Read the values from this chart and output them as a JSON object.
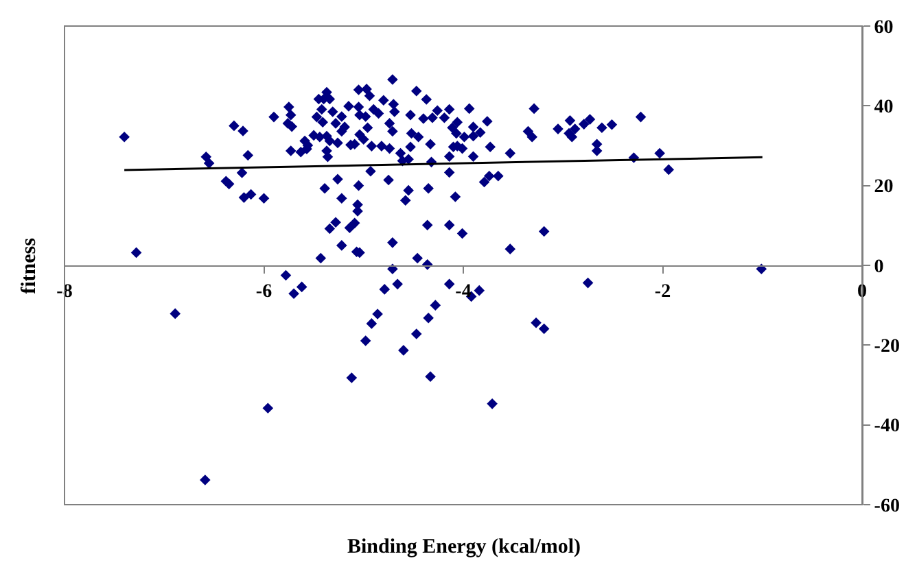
{
  "chart_data": {
    "type": "scatter",
    "xlabel": "Binding Energy (kcal/mol)",
    "ylabel": "fitness",
    "xlim": [
      -8,
      0
    ],
    "ylim": [
      -60,
      60
    ],
    "xticks": [
      -8,
      -6,
      -4,
      -2,
      0
    ],
    "yticks": [
      -60,
      -40,
      -20,
      0,
      20,
      40,
      60
    ],
    "grid": false,
    "marker": "diamond",
    "series": [
      {
        "color": "#000080",
        "x": [
          -7.4,
          -7.28,
          -6.55,
          -6.58,
          -6.3,
          -6.21,
          -6.16,
          -6.22,
          -6.38,
          -6.35,
          -6.2,
          -6.13,
          -6.0,
          -5.9,
          -5.75,
          -5.73,
          -5.76,
          -5.72,
          -5.73,
          -5.63,
          -5.59,
          -5.56,
          -5.57,
          -5.5,
          -5.45,
          -5.4,
          -5.34,
          -5.37,
          -5.42,
          -5.47,
          -5.41,
          -5.44,
          -5.37,
          -5.34,
          -5.37,
          -5.36,
          -5.31,
          -5.28,
          -5.22,
          -5.22,
          -5.26,
          -5.19,
          -5.15,
          -5.05,
          -4.97,
          -4.94,
          -5.05,
          -5.04,
          -4.98,
          -4.96,
          -5.13,
          -5.09,
          -5.0,
          -5.04,
          -4.92,
          -4.9,
          -4.85,
          -4.8,
          -4.71,
          -4.7,
          -4.69,
          -4.74,
          -4.71,
          -4.82,
          -4.74,
          -4.63,
          -4.47,
          -4.37,
          -4.53,
          -4.4,
          -4.31,
          -4.26,
          -4.52,
          -4.45,
          -4.53,
          -4.33,
          -4.61,
          -4.55,
          -4.32,
          -4.93,
          -5.26,
          -5.39,
          -5.22,
          -5.05,
          -5.06,
          -5.06,
          -5.28,
          -5.34,
          -5.14,
          -5.09,
          -5.22,
          -5.07,
          -5.04,
          -5.43,
          -4.71,
          -4.75,
          -4.55,
          -4.58,
          -4.35,
          -4.36,
          -4.46,
          -4.36,
          -4.19,
          -4.14,
          -4.11,
          -4.06,
          -4.07,
          -4.1,
          -4.06,
          -4.14,
          -3.99,
          -4.01,
          -3.94,
          -3.9,
          -3.9,
          -3.83,
          -3.76,
          -3.73,
          -3.9,
          -3.79,
          -3.74,
          -3.65,
          -3.53,
          -3.35,
          -3.31,
          -3.29,
          -3.05,
          -2.94,
          -2.91,
          -2.93,
          -2.88,
          -2.79,
          -2.73,
          -2.61,
          -2.51,
          -2.66,
          -2.66,
          -2.22,
          -2.29,
          -2.03,
          -1.94,
          -4.14,
          -4.08,
          -4.14,
          -4.01,
          -3.53,
          -3.19,
          -1.01,
          -6.89,
          -6.59,
          -5.96,
          -5.78,
          -5.7,
          -5.62,
          -5.12,
          -4.98,
          -4.92,
          -4.86,
          -4.79,
          -4.71,
          -4.66,
          -4.6,
          -4.47,
          -4.35,
          -4.28,
          -4.33,
          -4.14,
          -3.92,
          -3.84,
          -3.71,
          -3.27,
          -3.19,
          -2.75
        ],
        "values": [
          32.2,
          3.2,
          25.6,
          27.2,
          35.0,
          33.7,
          27.6,
          23.2,
          21.1,
          20.4,
          17.0,
          17.8,
          16.8,
          37.2,
          39.7,
          37.7,
          35.6,
          34.8,
          28.7,
          28.4,
          31.2,
          30.1,
          29.2,
          32.6,
          41.7,
          41.7,
          41.7,
          43.4,
          39.1,
          37.2,
          35.9,
          32.2,
          32.4,
          31.2,
          28.7,
          27.2,
          38.5,
          35.6,
          37.3,
          33.6,
          30.7,
          34.7,
          39.9,
          44.0,
          44.2,
          42.5,
          39.7,
          37.7,
          37.3,
          34.5,
          30.2,
          30.4,
          31.6,
          32.8,
          29.9,
          39.1,
          38.1,
          41.4,
          46.6,
          40.4,
          38.5,
          35.6,
          33.6,
          29.9,
          29.3,
          28.1,
          43.7,
          41.6,
          37.7,
          36.8,
          37.0,
          38.8,
          33.1,
          32.2,
          29.7,
          30.4,
          26.2,
          26.6,
          25.9,
          23.6,
          21.6,
          19.3,
          16.8,
          20.0,
          15.2,
          13.6,
          10.8,
          9.2,
          9.4,
          10.6,
          5.0,
          3.4,
          3.2,
          1.8,
          5.7,
          21.4,
          18.8,
          16.3,
          19.3,
          10.1,
          1.8,
          0.2,
          37.0,
          39.1,
          34.5,
          35.9,
          33.1,
          29.7,
          29.9,
          27.3,
          32.2,
          29.3,
          39.3,
          34.7,
          32.4,
          33.3,
          36.1,
          29.7,
          27.3,
          20.9,
          22.4,
          22.4,
          28.1,
          33.6,
          32.2,
          39.3,
          34.2,
          33.1,
          32.2,
          36.3,
          34.2,
          35.4,
          36.6,
          34.5,
          35.3,
          30.4,
          28.7,
          37.2,
          27.0,
          28.1,
          24.0,
          23.3,
          17.2,
          10.1,
          8.0,
          4.1,
          8.5,
          -0.9,
          -12.1,
          -53.8,
          -35.8,
          -2.5,
          -7.1,
          -5.4,
          -28.2,
          -18.9,
          -14.6,
          -12.2,
          -6.0,
          -0.9,
          -4.7,
          -21.3,
          -17.2,
          -13.2,
          -10.0,
          -27.9,
          -4.7,
          -7.8,
          -6.3,
          -34.7,
          -14.4,
          -15.9,
          -4.4
        ]
      },
      {
        "type": "line",
        "color": "#000000",
        "marker": "none",
        "line_style": "solid",
        "x": [
          -7.4,
          -1.0
        ],
        "values": [
          23.9,
          27.1
        ]
      }
    ]
  }
}
